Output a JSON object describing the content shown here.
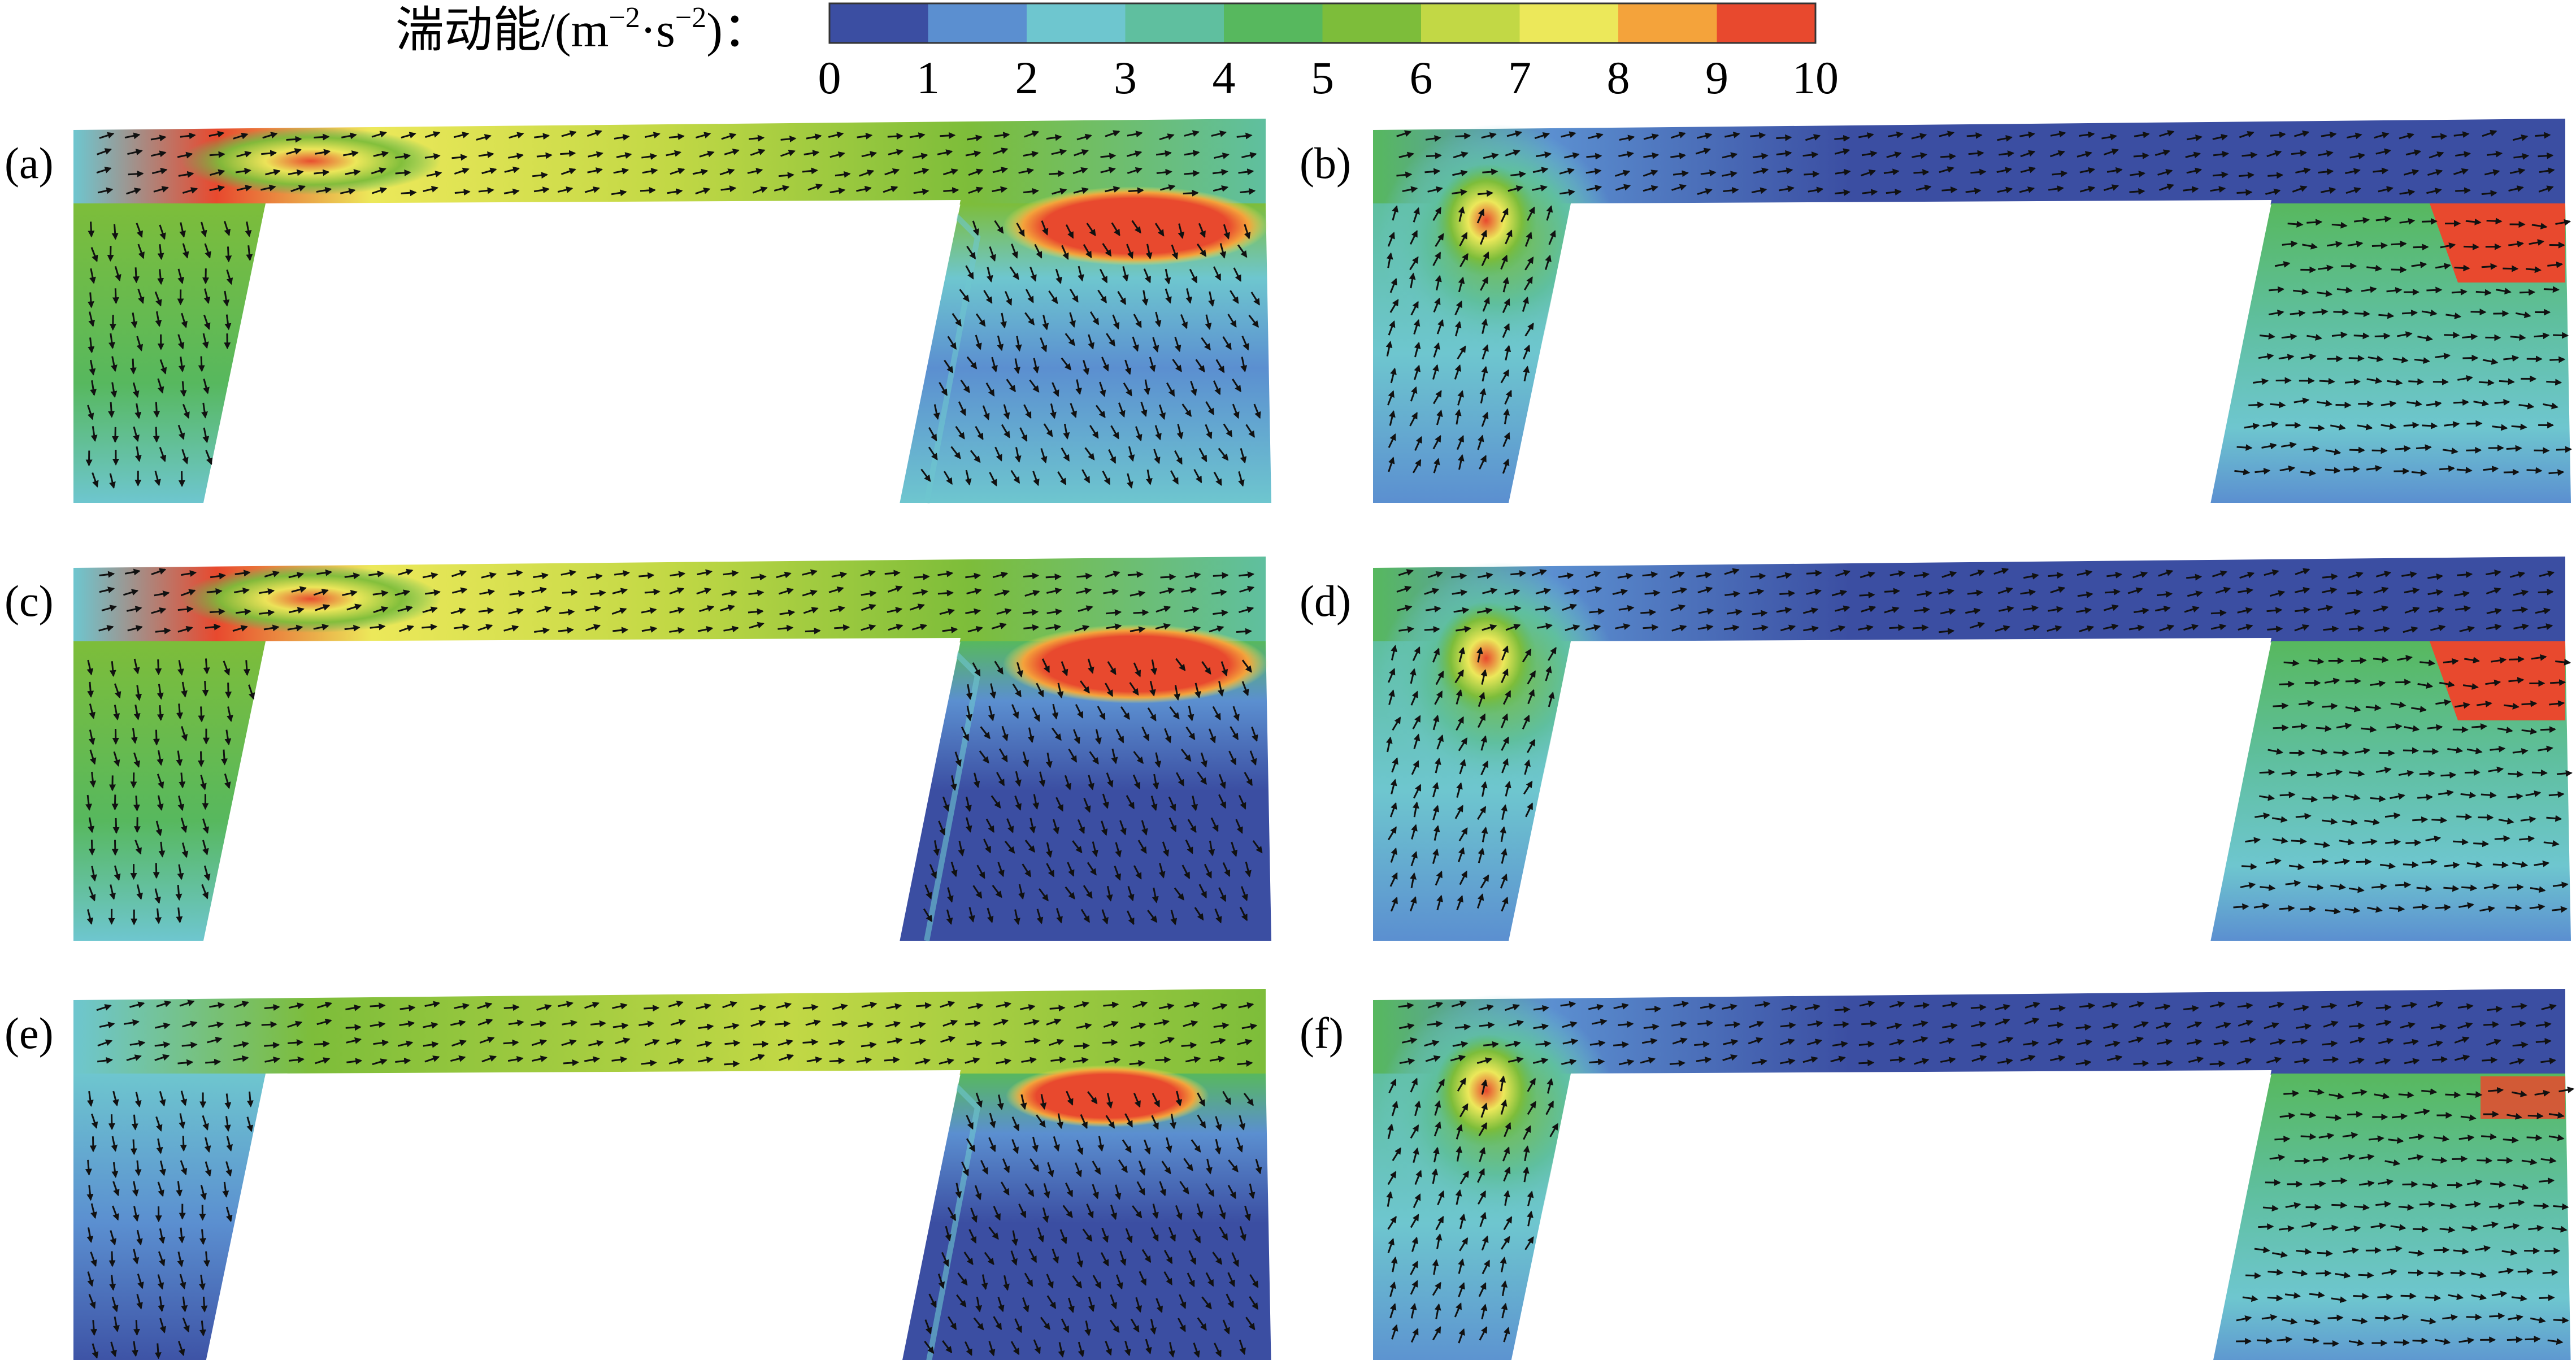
{
  "colorbar": {
    "title": "湍动能/(m",
    "title_sup1": "−2",
    "title_mid": "·s",
    "title_sup2": "−2",
    "title_end": ")：",
    "ticks": [
      "0",
      "1",
      "2",
      "3",
      "4",
      "5",
      "6",
      "7",
      "8",
      "9",
      "10"
    ],
    "colors": [
      "#3b4ea2",
      "#5b8fd0",
      "#6ec6cf",
      "#5fbf9f",
      "#57b85e",
      "#7dbd3a",
      "#c2d845",
      "#ece85a",
      "#f4a33b",
      "#e8492e"
    ]
  },
  "panels": [
    {
      "label": "(a)",
      "type": "high"
    },
    {
      "label": "(b)",
      "type": "low"
    },
    {
      "label": "(c)",
      "type": "high"
    },
    {
      "label": "(d)",
      "type": "low"
    },
    {
      "label": "(e)",
      "type": "mid"
    },
    {
      "label": "(f)",
      "type": "low"
    }
  ],
  "colors": {
    "blue": "#3b4ea2",
    "cyan": "#6ec6cf",
    "green": "#57b85e",
    "yellow": "#ece85a",
    "red": "#e8492e",
    "arrow": "#111111"
  }
}
